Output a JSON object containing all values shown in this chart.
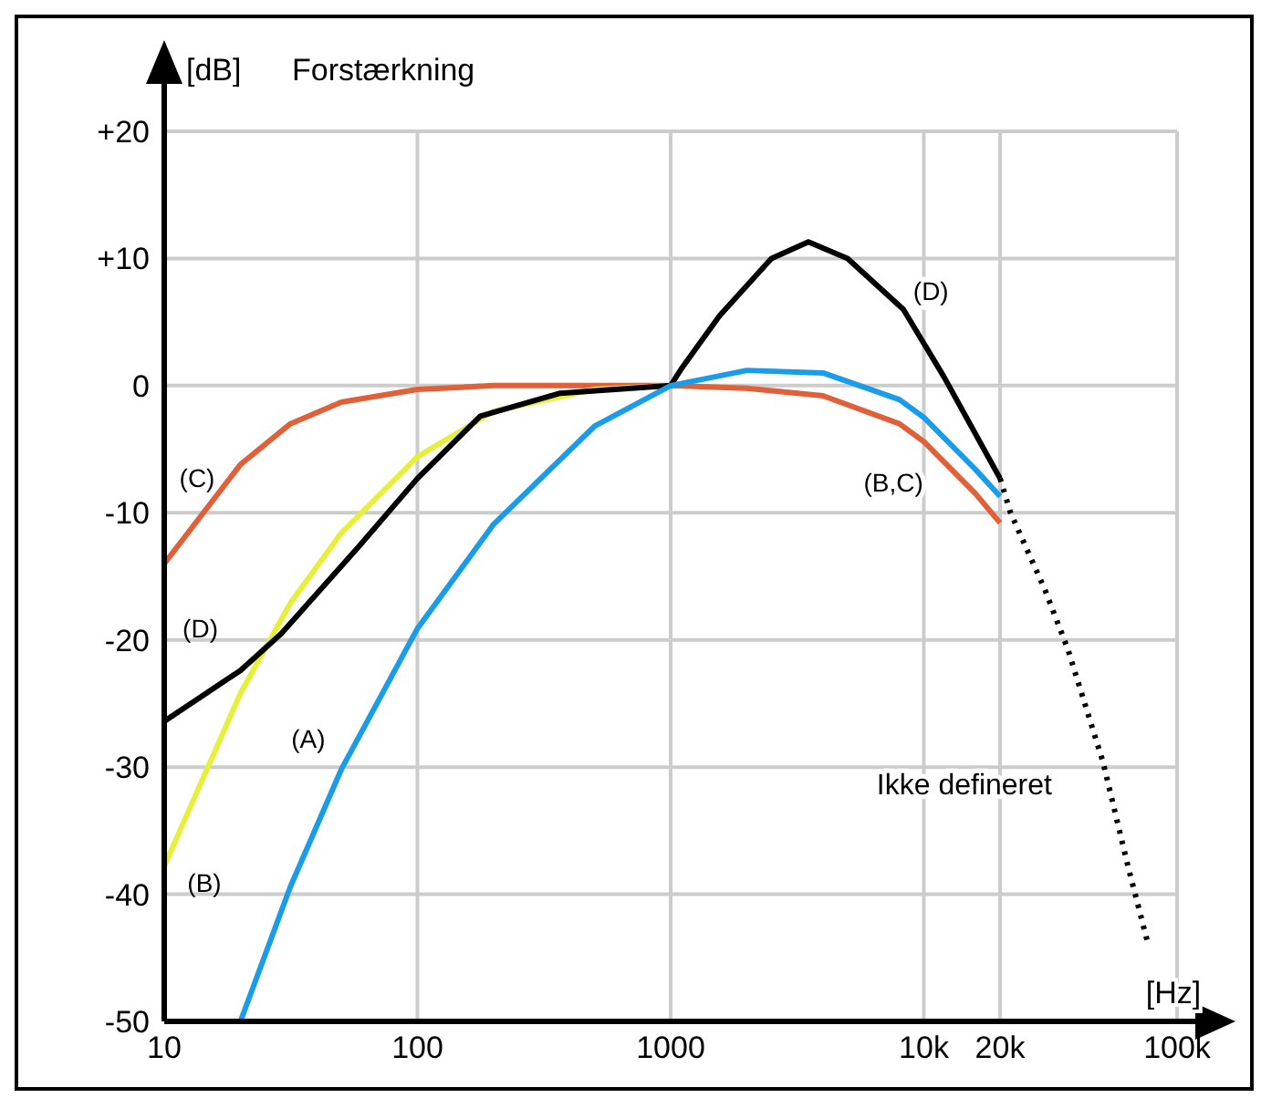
{
  "chart_data": {
    "type": "line",
    "title": "Forstærkning",
    "ylabel": "[dB]",
    "xlabel": "[Hz]",
    "log": "x",
    "xlim": [
      10,
      100000
    ],
    "ylim": [
      -50,
      20
    ],
    "xticks": [
      10,
      100,
      1000,
      {
        "value": 10000,
        "label": "10k"
      },
      {
        "value": 20000,
        "label": "20k"
      },
      {
        "value": 100000,
        "label": "100k"
      }
    ],
    "yticks": [
      -50,
      -40,
      -30,
      -20,
      -10,
      0,
      {
        "value": 10,
        "label": "+10"
      },
      {
        "value": 20,
        "label": "+20"
      }
    ],
    "grid": true,
    "line_style": "solid",
    "series": [
      {
        "name": "(C)",
        "color": "#e0603a",
        "x": [
          10,
          20,
          31.5,
          50,
          100,
          200,
          500,
          1000,
          2000,
          4000,
          8000,
          10000,
          16000,
          20000
        ],
        "values": [
          -14,
          -6.2,
          -3,
          -1.3,
          -0.3,
          0,
          0,
          0,
          -0.2,
          -0.8,
          -3,
          -4.4,
          -8.5,
          -10.8
        ]
      },
      {
        "name": "(B)",
        "color": "#e6f03a",
        "x": [
          10,
          20,
          31.5,
          50,
          100,
          200,
          500,
          1000
        ],
        "values": [
          -37.8,
          -24.2,
          -17.1,
          -11.6,
          -5.6,
          -2,
          -0.3,
          0
        ]
      },
      {
        "name": "(D)",
        "color": "#000000",
        "x": [
          10,
          20,
          29,
          59,
          100,
          177,
          366,
          1000,
          1100,
          1560,
          2500,
          3500,
          5000,
          8300,
          12000,
          20000
        ],
        "values": [
          -26.4,
          -22.4,
          -19.5,
          -12.6,
          -7.3,
          -2.4,
          -0.6,
          0,
          1.3,
          5.5,
          10,
          11.3,
          10,
          6,
          0.7,
          -7.3
        ]
      },
      {
        "name": "(A)",
        "color": "#1a9ce8",
        "x": [
          20,
          31.5,
          50,
          100,
          200,
          500,
          1000,
          2000,
          4000,
          8000,
          10000,
          16000,
          20000
        ],
        "values": [
          -50,
          -39.4,
          -30.2,
          -19.1,
          -10.9,
          -3.2,
          0,
          1.2,
          1,
          -1.1,
          -2.5,
          -6.6,
          -8.7
        ]
      },
      {
        "color": "#000000",
        "line_style": "dotted",
        "x": [
          20000,
          22000,
          30000,
          37000,
          51000,
          64000,
          77000
        ],
        "values": [
          -7.3,
          -10,
          -16,
          -20.7,
          -29.6,
          -37.8,
          -44
        ]
      }
    ],
    "annotations": [
      "(B,C)",
      "(D)",
      "Ikke defineret"
    ]
  }
}
